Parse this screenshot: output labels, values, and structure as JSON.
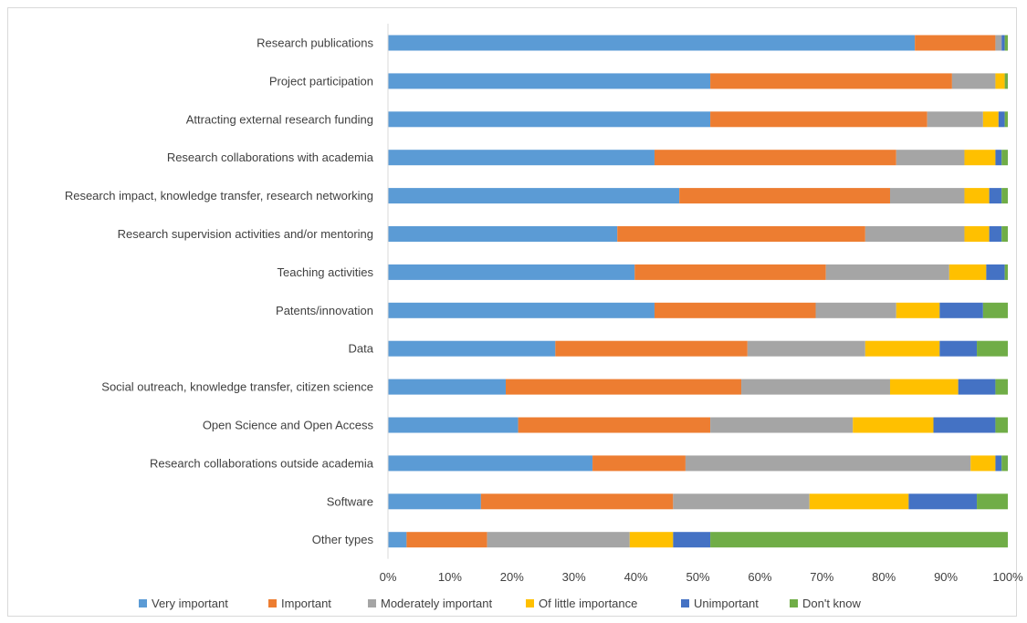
{
  "chart_data": {
    "type": "bar",
    "orientation": "horizontal",
    "stacked": "percent",
    "categories": [
      "Research publications",
      "Project participation",
      "Attracting external research funding",
      "Research collaborations with academia",
      "Research impact, knowledge transfer, research networking",
      "Research supervision activities and/or mentoring",
      "Teaching activities",
      "Patents/innovation",
      "Data",
      "Social outreach, knowledge transfer, citizen science",
      "Open Science and Open Access",
      "Research collaborations outside academia",
      "Software",
      "Other types"
    ],
    "series": [
      {
        "name": "Very important",
        "color": "#5b9bd5",
        "values": [
          85,
          52,
          52,
          43,
          47,
          37,
          40,
          43,
          27,
          19,
          21,
          33,
          15,
          3
        ]
      },
      {
        "name": "Important",
        "color": "#ed7d31",
        "values": [
          13,
          39,
          35,
          39,
          34,
          40,
          31,
          26,
          31,
          38,
          31,
          15,
          31,
          13
        ]
      },
      {
        "name": "Moderately important",
        "color": "#a5a5a5",
        "values": [
          1,
          7,
          9,
          11,
          12,
          16,
          20,
          13,
          19,
          24,
          23,
          46,
          22,
          23
        ]
      },
      {
        "name": "Of little importance",
        "color": "#ffc000",
        "values": [
          0,
          1.5,
          2.5,
          5,
          4,
          4,
          6,
          7,
          12,
          11,
          13,
          4,
          16,
          7
        ]
      },
      {
        "name": "Unimportant",
        "color": "#4472c4",
        "values": [
          0.5,
          0,
          1,
          1,
          2,
          2,
          3,
          7,
          6,
          6,
          10,
          1,
          11,
          6
        ]
      },
      {
        "name": "Don't know",
        "color": "#70ad47",
        "values": [
          0.5,
          0.5,
          0.5,
          1,
          1,
          1,
          0.5,
          4,
          5,
          2,
          2,
          1,
          5,
          48
        ]
      }
    ],
    "xlim": [
      0,
      100
    ],
    "ticks": [
      "0%",
      "10%",
      "20%",
      "30%",
      "40%",
      "50%",
      "60%",
      "70%",
      "80%",
      "90%",
      "100%"
    ],
    "legend_position": "bottom",
    "grid": false
  }
}
